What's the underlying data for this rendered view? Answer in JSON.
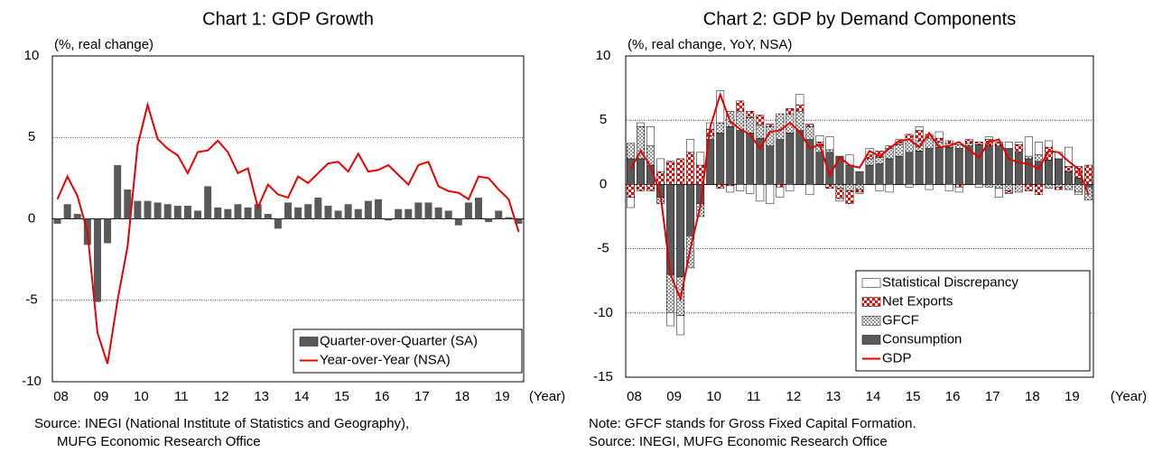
{
  "chart_data": [
    {
      "type": "bar_line",
      "title": "Chart 1: GDP Growth",
      "y_unit": "(%, real change)",
      "x_unit": "(Year)",
      "notes": [
        "Source: INEGI (National Institute of Statistics and Geography),",
        "MUFG Economic Research Office"
      ],
      "categories": [
        "08",
        null,
        null,
        null,
        "09",
        null,
        null,
        null,
        "10",
        null,
        null,
        null,
        "11",
        null,
        null,
        null,
        "12",
        null,
        null,
        null,
        "13",
        null,
        null,
        null,
        "14",
        null,
        null,
        null,
        "15",
        null,
        null,
        null,
        "16",
        null,
        null,
        null,
        "17",
        null,
        null,
        null,
        "18",
        null,
        null,
        null,
        "19",
        null,
        null
      ],
      "ylim": [
        -10,
        10
      ],
      "yticks": [
        -10,
        -5,
        0,
        5,
        10
      ],
      "grid": true,
      "legend": "lower right",
      "series": [
        {
          "name": "Quarter-over-Quarter (SA)",
          "kind": "bar",
          "color": "#595959",
          "values": [
            -0.3,
            0.9,
            0.3,
            -1.6,
            -5.1,
            -1.5,
            3.3,
            1.8,
            1.1,
            1.1,
            1.0,
            0.9,
            0.8,
            0.8,
            0.5,
            2.0,
            0.7,
            0.6,
            0.9,
            0.7,
            0.9,
            0.3,
            -0.6,
            1.0,
            0.7,
            0.9,
            1.3,
            0.8,
            0.5,
            0.9,
            0.6,
            1.1,
            1.2,
            -0.1,
            0.6,
            0.6,
            1.0,
            1.0,
            0.7,
            0.5,
            -0.4,
            1.0,
            1.3,
            -0.2,
            0.5,
            0.1,
            -0.3
          ]
        },
        {
          "name": "Year-over-Year (NSA)",
          "kind": "line",
          "color": "#e60000",
          "values": [
            1.2,
            2.6,
            1.4,
            -0.8,
            -7.0,
            -8.9,
            -5.0,
            -1.7,
            4.5,
            7.0,
            4.9,
            4.3,
            3.9,
            2.8,
            4.1,
            4.2,
            4.8,
            4.1,
            2.8,
            3.1,
            0.7,
            2.1,
            1.5,
            1.3,
            2.6,
            2.2,
            2.8,
            3.4,
            3.5,
            2.9,
            4.0,
            2.9,
            3.0,
            3.3,
            2.7,
            2.1,
            3.3,
            3.5,
            2.0,
            1.7,
            1.6,
            1.2,
            2.6,
            2.5,
            1.8,
            1.2,
            -0.8
          ]
        }
      ]
    },
    {
      "type": "stacked_bar_line",
      "title": "Chart 2: GDP by Demand Components",
      "y_unit": "(%, real change, YoY, NSA)",
      "x_unit": "(Year)",
      "notes": [
        "Note: GFCF stands for Gross Fixed Capital Formation.",
        "Source: INEGI, MUFG Economic Research Office"
      ],
      "categories": [
        "08",
        null,
        null,
        null,
        "09",
        null,
        null,
        null,
        "10",
        null,
        null,
        null,
        "11",
        null,
        null,
        null,
        "12",
        null,
        null,
        null,
        "13",
        null,
        null,
        null,
        "14",
        null,
        null,
        null,
        "15",
        null,
        null,
        null,
        "16",
        null,
        null,
        null,
        "17",
        null,
        null,
        null,
        "18",
        null,
        null,
        null,
        "19",
        null,
        null
      ],
      "ylim": [
        -15,
        10
      ],
      "yticks": [
        -15,
        -10,
        -5,
        0,
        5,
        10
      ],
      "grid": true,
      "legend": "lower right",
      "series": [
        {
          "name": "Statistical Discrepancy",
          "kind": "bar",
          "color": "#ffffff",
          "pattern": "solid",
          "values": [
            -0.8,
            0.3,
            1.5,
            1.0,
            -1.0,
            -1.5,
            1.0,
            1.0,
            0.5,
            2.5,
            -0.5,
            -0.5,
            -0.7,
            -1.3,
            -1.5,
            -0.8,
            -0.5,
            0.8,
            -0.8,
            0.5,
            1.0,
            -0.2,
            0.8,
            -0.1,
            0.5,
            -0.5,
            -0.6,
            0.2,
            -0.2,
            0.3,
            -0.4,
            0.5,
            -0.5,
            -0.4,
            0.0,
            -0.2,
            0.2,
            -0.7,
            0.5,
            0.2,
            1.5,
            1.0,
            0.5,
            0.5,
            1.5,
            -0.2,
            0.0
          ]
        },
        {
          "name": "Net Exports",
          "kind": "bar",
          "color": "#ff0000",
          "pattern": "checker",
          "values": [
            -1.0,
            -0.5,
            -0.5,
            1.0,
            1.8,
            2.0,
            2.5,
            1.5,
            0.5,
            -0.3,
            -0.1,
            0.8,
            0.5,
            0.8,
            0.2,
            -0.2,
            0.4,
            0.5,
            0.2,
            0.3,
            -0.3,
            -0.8,
            -1.0,
            -0.2,
            0.3,
            0.5,
            0.2,
            0.2,
            0.4,
            0.8,
            0.3,
            0.3,
            0.2,
            -0.2,
            0.3,
            0.2,
            0.5,
            0.3,
            -0.2,
            0.6,
            -0.5,
            -0.8,
            1.0,
            -0.2,
            0.4,
            0.9,
            1.5
          ]
        },
        {
          "name": "GFCF",
          "kind": "bar",
          "color": "#404040",
          "pattern": "dots",
          "values": [
            1.2,
            2.5,
            1.5,
            -0.5,
            -3.0,
            -3.0,
            -2.5,
            -1.0,
            0.3,
            0.8,
            1.2,
            1.5,
            1.2,
            1.0,
            1.5,
            2.0,
            1.5,
            1.5,
            1.0,
            0.5,
            0.2,
            -0.3,
            -0.5,
            -0.4,
            0.5,
            0.5,
            0.8,
            0.9,
            1.0,
            0.8,
            0.8,
            0.4,
            0.3,
            0.3,
            0.2,
            0.0,
            -0.2,
            -0.3,
            -0.5,
            -0.6,
            0.2,
            0.5,
            -0.3,
            -0.2,
            -0.4,
            -0.6,
            -1.0
          ]
        },
        {
          "name": "Consumption",
          "kind": "bar",
          "color": "#595959",
          "pattern": "solid",
          "values": [
            2.0,
            2.0,
            1.5,
            -1.0,
            -7.0,
            -7.2,
            -4.0,
            -1.5,
            3.5,
            4.0,
            4.5,
            4.2,
            4.0,
            3.6,
            3.0,
            3.5,
            4.0,
            4.2,
            3.5,
            2.5,
            2.5,
            2.2,
            1.5,
            1.0,
            1.5,
            1.6,
            2.0,
            2.2,
            2.5,
            2.6,
            2.8,
            2.9,
            2.9,
            2.8,
            3.0,
            3.1,
            3.0,
            3.0,
            2.8,
            2.5,
            2.0,
            1.8,
            1.9,
            2.0,
            1.0,
            0.5,
            -0.2
          ]
        },
        {
          "name": "GDP",
          "kind": "line",
          "color": "#e60000",
          "values": [
            1.2,
            2.6,
            1.4,
            -0.8,
            -7.0,
            -8.9,
            -5.0,
            -1.7,
            4.5,
            7.0,
            4.9,
            4.3,
            3.9,
            2.8,
            4.1,
            4.2,
            4.8,
            4.1,
            2.8,
            3.1,
            0.7,
            2.1,
            1.5,
            1.3,
            2.6,
            2.2,
            2.8,
            3.4,
            3.5,
            2.9,
            4.0,
            2.9,
            3.0,
            3.3,
            2.7,
            2.1,
            3.3,
            3.5,
            2.0,
            1.7,
            1.6,
            1.2,
            2.6,
            2.5,
            1.8,
            1.2,
            -0.8
          ]
        }
      ]
    }
  ]
}
